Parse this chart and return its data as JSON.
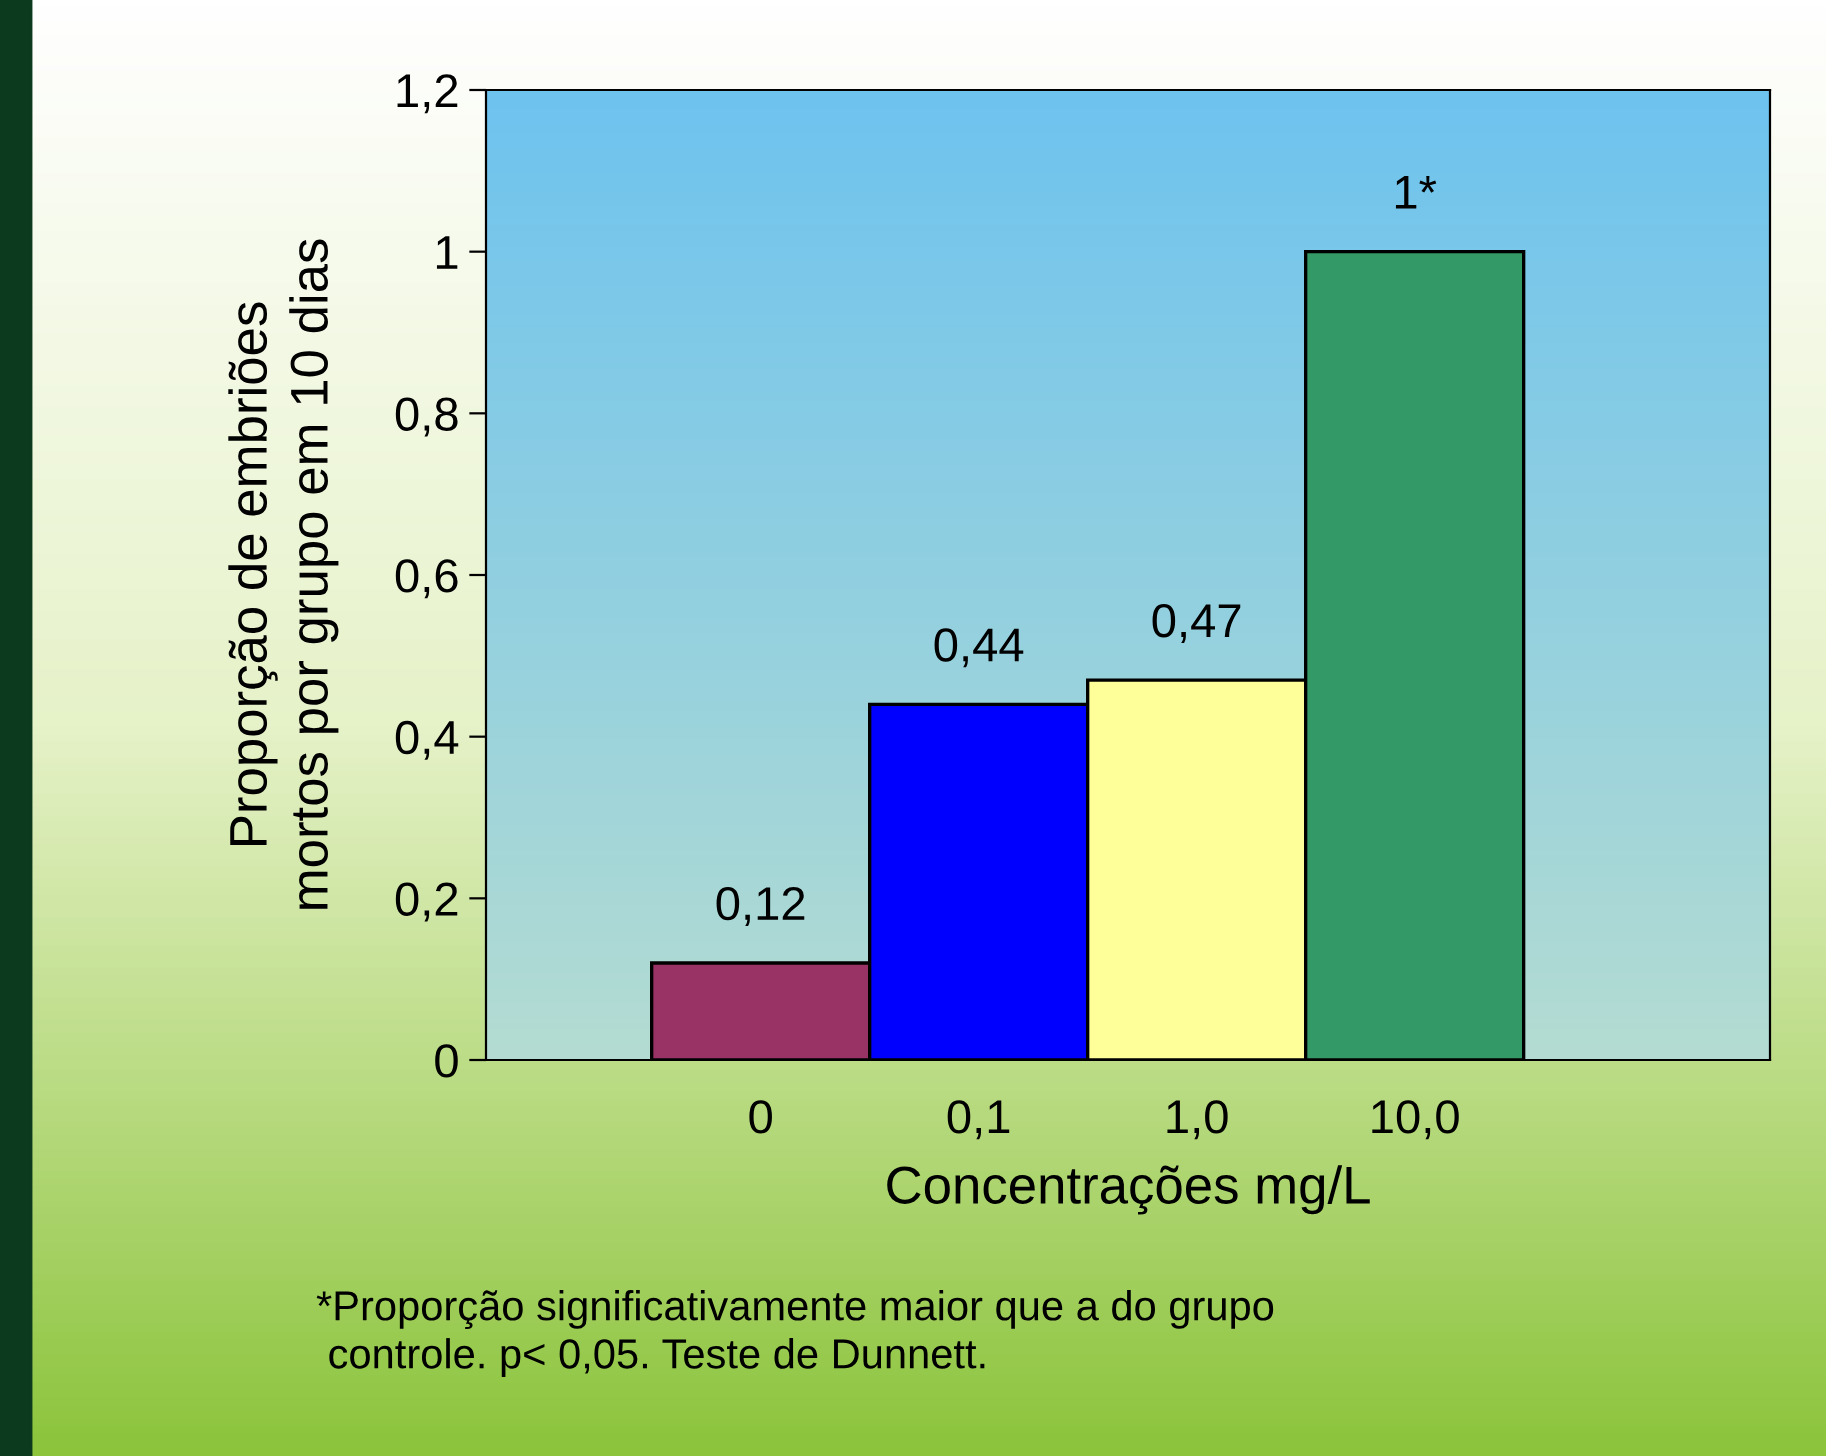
{
  "chart_data": {
    "type": "bar",
    "xlabel": "Concentrações mg/L",
    "ylabel": "Proporção de embriões\nmortos por grupo em 10 dias",
    "categories": [
      "0",
      "0,1",
      "1,0",
      "10,0"
    ],
    "values": [
      0.12,
      0.44,
      0.47,
      1
    ],
    "colors": [
      "#993366",
      "#0000ff",
      "#ffff99",
      "#339966"
    ],
    "value_labels": [
      "0,12",
      "0,44",
      "0,47",
      "1*"
    ],
    "ylim": [
      0,
      1.2
    ],
    "yticks": [
      {
        "value": 0,
        "label": "0"
      },
      {
        "value": 0.2,
        "label": "0,2"
      },
      {
        "value": 0.4,
        "label": "0,4"
      },
      {
        "value": 0.6,
        "label": "0,6"
      },
      {
        "value": 0.8,
        "label": "0,8"
      },
      {
        "value": 1,
        "label": "1"
      },
      {
        "value": 1.2,
        "label": "1,2"
      }
    ],
    "grid": false,
    "annotations": [
      "*Proporção significativamente maior que a do grupo\n controle. p< 0,05. Teste de Dunnett."
    ]
  }
}
